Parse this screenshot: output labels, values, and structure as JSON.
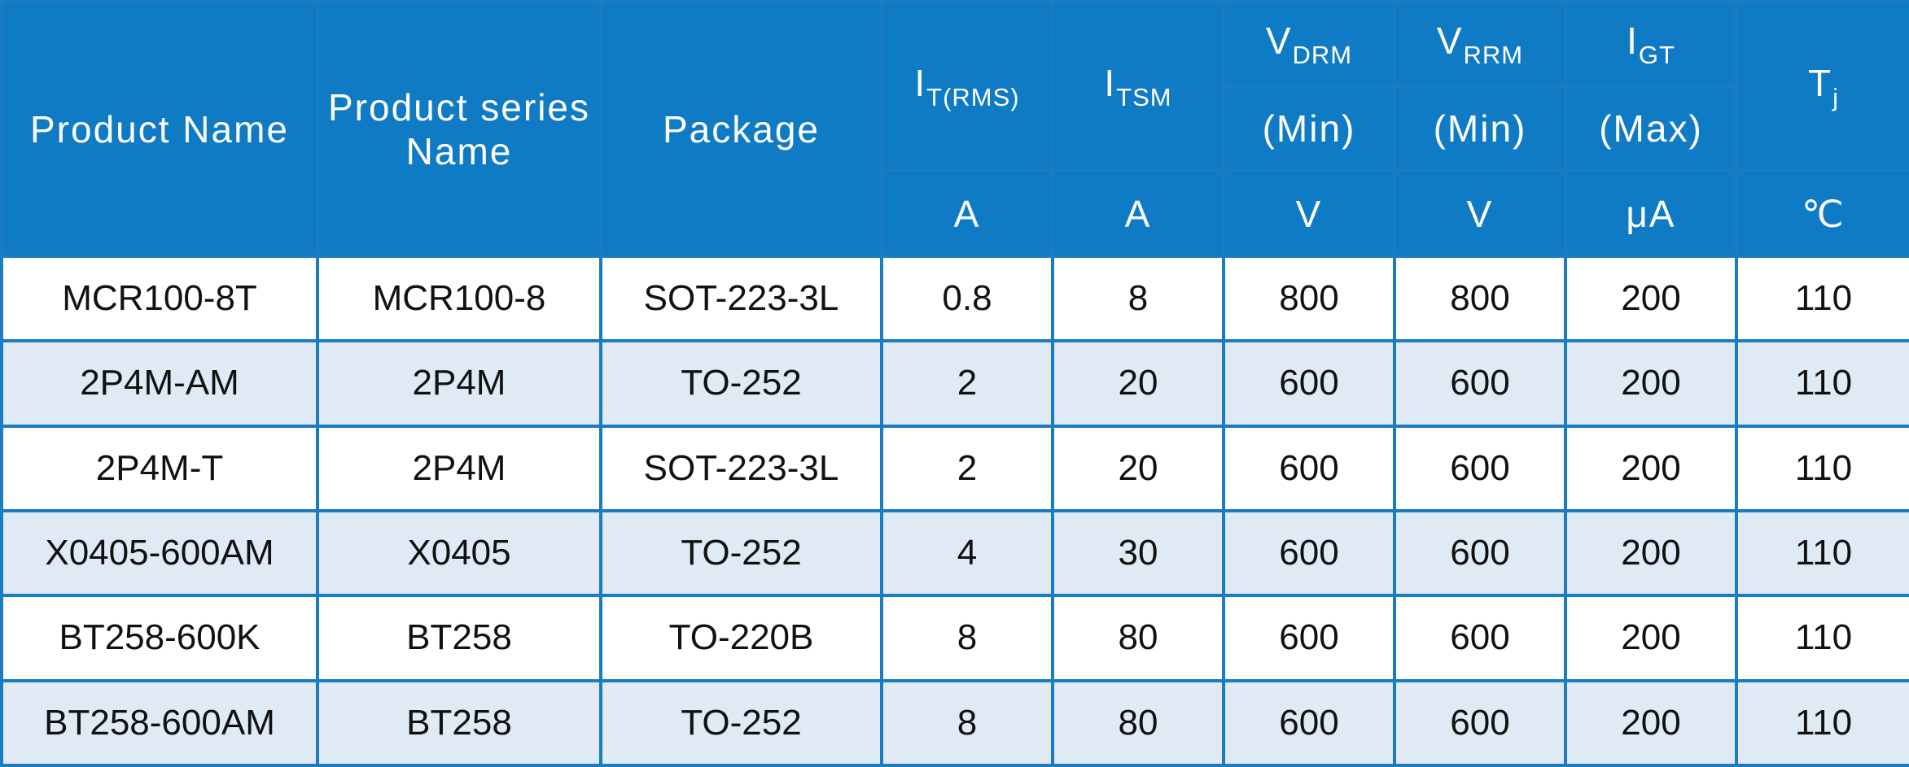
{
  "header": {
    "product_name": "Product Name",
    "series_name": "Product series Name",
    "package": "Package",
    "it_main": "I",
    "it_sub": "T(RMS)",
    "itsm_main": "I",
    "itsm_sub": "TSM",
    "vdrm_main": "V",
    "vdrm_sub": "DRM",
    "vrrm_main": "V",
    "vrrm_sub": "RRM",
    "igt_main": "I",
    "igt_sub": "GT",
    "tj_main": "T",
    "tj_sub": "j",
    "vdrm_cond": "(Min)",
    "vrrm_cond": "(Min)",
    "igt_cond": "(Max)",
    "unit_it": "A",
    "unit_itsm": "A",
    "unit_vdrm": "V",
    "unit_vrrm": "V",
    "unit_igt": "μA",
    "unit_tj": "℃"
  },
  "rows": [
    {
      "name": "MCR100-8T",
      "series": "MCR100-8",
      "package": "SOT-223-3L",
      "it": "0.8",
      "itsm": "8",
      "vdrm": "800",
      "vrrm": "800",
      "igt": "200",
      "tj": "110"
    },
    {
      "name": "2P4M-AM",
      "series": "2P4M",
      "package": "TO-252",
      "it": "2",
      "itsm": "20",
      "vdrm": "600",
      "vrrm": "600",
      "igt": "200",
      "tj": "110"
    },
    {
      "name": "2P4M-T",
      "series": "2P4M",
      "package": "SOT-223-3L",
      "it": "2",
      "itsm": "20",
      "vdrm": "600",
      "vrrm": "600",
      "igt": "200",
      "tj": "110"
    },
    {
      "name": "X0405-600AM",
      "series": "X0405",
      "package": "TO-252",
      "it": "4",
      "itsm": "30",
      "vdrm": "600",
      "vrrm": "600",
      "igt": "200",
      "tj": "110"
    },
    {
      "name": "BT258-600K",
      "series": "BT258",
      "package": "TO-220B",
      "it": "8",
      "itsm": "80",
      "vdrm": "600",
      "vrrm": "600",
      "igt": "200",
      "tj": "110"
    },
    {
      "name": "BT258-600AM",
      "series": "BT258",
      "package": "TO-252",
      "it": "8",
      "itsm": "80",
      "vdrm": "600",
      "vrrm": "600",
      "igt": "200",
      "tj": "110"
    }
  ],
  "colors": {
    "header_bg": "#0f7bc5",
    "grid_line": "#1a7cc1",
    "row_alt_bg": "#dfeaf5"
  }
}
